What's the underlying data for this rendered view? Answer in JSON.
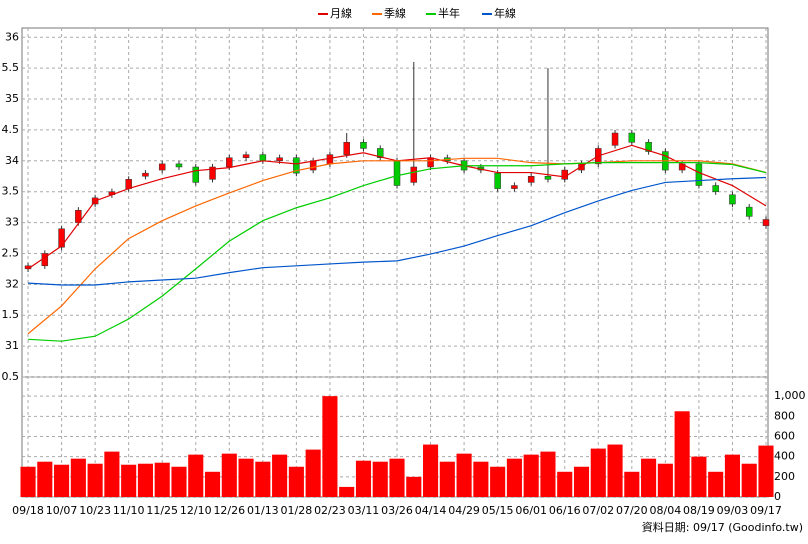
{
  "chart_data": [
    {
      "type": "candlestick",
      "legend": "top-center",
      "grid": true,
      "up_color": "#ff0000",
      "down_color": "#00cc00",
      "xlim": [
        -0.18,
        22.06
      ],
      "ylim": [
        30.5,
        36.15
      ],
      "yticks": [
        {
          "value": 30.5,
          "label": "0.5"
        },
        31,
        {
          "value": 31.5,
          "label": "1.5"
        },
        32,
        {
          "value": 32.5,
          "label": "2.5"
        },
        33,
        {
          "value": 33.5,
          "label": "3.5"
        },
        34,
        {
          "value": 34.5,
          "label": "4.5"
        },
        35,
        {
          "value": 35.5,
          "label": "5.5"
        },
        36
      ],
      "xticks": [
        {
          "value": 0,
          "label": "09/18"
        },
        {
          "value": 1,
          "label": "10/07"
        },
        {
          "value": 2,
          "label": "10/23"
        },
        {
          "value": 3,
          "label": "11/10"
        },
        {
          "value": 4,
          "label": "11/25"
        },
        {
          "value": 5,
          "label": "12/10"
        },
        {
          "value": 6,
          "label": "12/26"
        },
        {
          "value": 7,
          "label": "01/13"
        },
        {
          "value": 8,
          "label": "01/28"
        },
        {
          "value": 9,
          "label": "02/23"
        },
        {
          "value": 10,
          "label": "03/11"
        },
        {
          "value": 11,
          "label": "03/26"
        },
        {
          "value": 12,
          "label": "04/14"
        },
        {
          "value": 13,
          "label": "04/29"
        },
        {
          "value": 14,
          "label": "05/15"
        },
        {
          "value": 15,
          "label": "06/01"
        },
        {
          "value": 16,
          "label": "06/16"
        },
        {
          "value": 17,
          "label": "07/02"
        },
        {
          "value": 18,
          "label": "07/20"
        },
        {
          "value": 19,
          "label": "08/04"
        },
        {
          "value": 20,
          "label": "08/19"
        },
        {
          "value": 21,
          "label": "09/03"
        },
        {
          "value": 22,
          "label": "09/17"
        }
      ],
      "x": [
        0,
        0.5,
        1,
        1.5,
        2,
        2.5,
        3,
        3.5,
        4,
        4.5,
        5,
        5.5,
        6,
        6.5,
        7,
        7.5,
        8,
        8.5,
        9,
        9.5,
        10,
        10.5,
        11,
        11.5,
        12,
        12.5,
        13,
        13.5,
        14,
        14.5,
        15,
        15.5,
        16,
        16.5,
        17,
        17.5,
        18,
        18.5,
        19,
        19.5,
        20,
        20.5,
        21,
        21.5,
        22
      ],
      "open": [
        32.25,
        32.3,
        32.6,
        33.0,
        33.3,
        33.45,
        33.55,
        33.75,
        33.85,
        33.95,
        33.9,
        33.7,
        33.9,
        34.05,
        34.1,
        34.0,
        34.05,
        33.85,
        33.95,
        34.1,
        34.3,
        34.2,
        34.0,
        33.65,
        33.9,
        34.05,
        34.0,
        33.9,
        33.8,
        33.55,
        33.65,
        33.75,
        33.7,
        33.85,
        33.95,
        34.25,
        34.45,
        34.3,
        34.15,
        33.85,
        33.95,
        33.6,
        33.45,
        33.25,
        32.95
      ],
      "close": [
        32.3,
        32.5,
        32.9,
        33.2,
        33.4,
        33.5,
        33.7,
        33.8,
        33.95,
        33.9,
        33.65,
        33.9,
        34.05,
        34.1,
        34.0,
        34.05,
        33.8,
        34.0,
        34.1,
        34.3,
        34.2,
        34.05,
        33.6,
        33.9,
        34.05,
        34.0,
        33.85,
        33.85,
        33.55,
        33.6,
        33.75,
        33.7,
        33.85,
        33.95,
        34.2,
        34.45,
        34.3,
        34.15,
        33.85,
        33.95,
        33.6,
        33.5,
        33.3,
        33.1,
        33.05
      ],
      "high": [
        32.35,
        32.55,
        32.95,
        33.25,
        33.45,
        33.55,
        33.75,
        33.85,
        34.0,
        34.0,
        33.95,
        33.95,
        34.1,
        34.15,
        34.15,
        34.1,
        34.1,
        34.05,
        34.15,
        34.45,
        34.35,
        34.25,
        34.05,
        35.6,
        34.1,
        34.1,
        34.05,
        33.95,
        33.85,
        33.65,
        33.8,
        35.5,
        33.9,
        34.0,
        34.25,
        34.5,
        34.5,
        34.35,
        34.2,
        34.0,
        34.0,
        33.65,
        33.5,
        33.3,
        33.1
      ],
      "low": [
        32.2,
        32.25,
        32.55,
        32.95,
        33.25,
        33.4,
        33.5,
        33.7,
        33.8,
        33.85,
        33.6,
        33.65,
        33.85,
        34.0,
        33.95,
        33.95,
        33.75,
        33.8,
        33.9,
        34.05,
        34.15,
        34.0,
        33.55,
        33.6,
        33.85,
        33.95,
        33.8,
        33.8,
        33.5,
        33.5,
        33.6,
        33.65,
        33.65,
        33.8,
        33.9,
        34.2,
        34.25,
        34.1,
        33.8,
        33.8,
        33.55,
        33.45,
        33.25,
        33.05,
        32.9
      ],
      "series": [
        {
          "name": "月線",
          "color": "#e00000",
          "x": [
            0,
            1,
            2,
            3,
            4,
            5,
            6,
            7,
            8,
            9,
            10,
            11,
            12,
            13,
            14,
            15,
            16,
            17,
            18,
            19,
            20,
            21,
            22
          ],
          "values": [
            32.25,
            32.62,
            33.35,
            33.55,
            33.71,
            33.84,
            33.89,
            34.0,
            33.95,
            34.04,
            34.13,
            34.0,
            34.05,
            33.92,
            33.81,
            33.81,
            33.74,
            34.08,
            34.25,
            34.08,
            33.81,
            33.6,
            33.27
          ]
        },
        {
          "name": "季線",
          "color": "#ff6600",
          "x": [
            0,
            1,
            2,
            3,
            4,
            5,
            6,
            7,
            8,
            9,
            10,
            11,
            12,
            13,
            14,
            15,
            16,
            17,
            18,
            19,
            20,
            21,
            22
          ],
          "values": [
            31.2,
            31.65,
            32.25,
            32.74,
            33.03,
            33.27,
            33.48,
            33.68,
            33.84,
            33.95,
            34.0,
            34.0,
            34.0,
            34.04,
            34.04,
            33.97,
            33.95,
            33.97,
            34.0,
            34.0,
            34.0,
            33.95,
            33.81
          ]
        },
        {
          "name": "半年",
          "color": "#00cc00",
          "x": [
            0,
            1,
            2,
            3,
            4,
            5,
            6,
            7,
            8,
            9,
            10,
            11,
            12,
            13,
            14,
            15,
            16,
            17,
            18,
            19,
            20,
            21,
            22
          ],
          "values": [
            31.11,
            31.08,
            31.16,
            31.44,
            31.81,
            32.25,
            32.7,
            33.03,
            33.24,
            33.4,
            33.6,
            33.76,
            33.87,
            33.92,
            33.92,
            33.92,
            33.95,
            33.97,
            33.97,
            33.97,
            33.97,
            33.94,
            33.81
          ]
        },
        {
          "name": "年線",
          "color": "#0055cc",
          "x": [
            0,
            1,
            2,
            3,
            4,
            5,
            6,
            7,
            8,
            9,
            10,
            11,
            12,
            13,
            14,
            15,
            16,
            17,
            18,
            19,
            20,
            21,
            22
          ],
          "values": [
            32.02,
            31.99,
            31.99,
            32.04,
            32.07,
            32.1,
            32.19,
            32.27,
            32.3,
            32.33,
            32.36,
            32.38,
            32.49,
            32.62,
            32.79,
            32.95,
            33.16,
            33.35,
            33.52,
            33.65,
            33.68,
            33.71,
            33.73
          ]
        }
      ]
    },
    {
      "type": "bar",
      "color": "#ff0000",
      "grid": true,
      "xlim": [
        -0.18,
        22.06
      ],
      "ylim": [
        0,
        1190
      ],
      "yticks": [
        0,
        200,
        400,
        600,
        800,
        {
          "value": 1000,
          "label": "1,000"
        }
      ],
      "x": [
        0,
        0.5,
        1,
        1.5,
        2,
        2.5,
        3,
        3.5,
        4,
        4.5,
        5,
        5.5,
        6,
        6.5,
        7,
        7.5,
        8,
        8.5,
        9,
        9.5,
        10,
        10.5,
        11,
        11.5,
        12,
        12.5,
        13,
        13.5,
        14,
        14.5,
        15,
        15.5,
        16,
        16.5,
        17,
        17.5,
        18,
        18.5,
        19,
        19.5,
        20,
        20.5,
        21,
        21.5,
        22
      ],
      "values": [
        300,
        350,
        320,
        380,
        330,
        450,
        320,
        330,
        340,
        300,
        420,
        250,
        430,
        380,
        350,
        420,
        300,
        470,
        1000,
        100,
        360,
        350,
        380,
        200,
        520,
        350,
        430,
        350,
        300,
        380,
        420,
        450,
        250,
        300,
        480,
        520,
        250,
        380,
        330,
        850,
        400,
        250,
        420,
        330,
        510
      ],
      "footnote": "資料日期: 09/17 (Goodinfo.tw)"
    }
  ]
}
